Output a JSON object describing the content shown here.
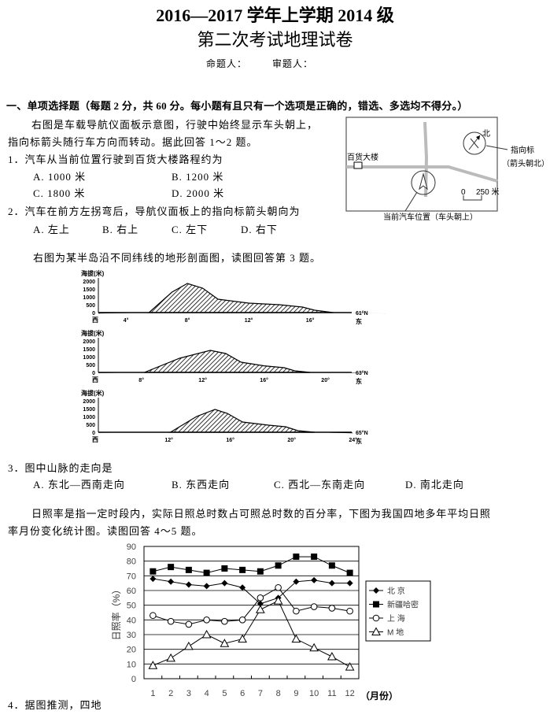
{
  "header": {
    "title_line1": "2016—2017 学年上学期 2014 级",
    "title_line2": "第二次考试地理试卷",
    "setter": "命题人：",
    "reviewer": "审题人："
  },
  "section1": {
    "heading": "一、单项选择题（每题 2 分，共 60 分。每小题有且只有一个选项是正确的，错选、多选均不得分。）"
  },
  "intro1": {
    "line1": "右图是车载导航仪面板示意图，行驶中始终显示车头朝上，",
    "line2": "指向标箭头随行车方向而转动。据此回答 1～2 题。"
  },
  "q1": {
    "stem": "1．汽车从当前位置行驶到百货大楼路程约为",
    "options": [
      "A. 1000 米",
      "B. 1200 米",
      "C. 1800 米",
      "D. 2000 米"
    ]
  },
  "q2": {
    "stem": "2．汽车在前方左拐弯后，导航仪面板上的指向标箭头朝向为",
    "options": [
      "A. 左上",
      "B. 右上",
      "C. 左下",
      "D. 右下"
    ]
  },
  "nav_map": {
    "building": "百货大楼",
    "north": "北",
    "pointer": "指向标",
    "pointer_note": "（箭头朝北）",
    "scale_zero": "0",
    "scale_value": "250 米",
    "car_caption": "当前汽车位置（车头朝上）"
  },
  "intro3": "右图为某半岛沿不同纬线的地形剖面图，读图回答第 3 题。",
  "profiles": [
    {
      "ylabel": "海拔(米)",
      "yticks": [
        "2000",
        "1500",
        "1000",
        "500",
        "0"
      ],
      "west": "西",
      "east": "东",
      "latitude": "61°N",
      "xticks": [
        "4°",
        "8°",
        "12°",
        "16°"
      ],
      "xtick_values": [
        4,
        8,
        12,
        16
      ],
      "range": [
        2.2,
        25.6
      ],
      "points": [
        [
          2.2,
          -120
        ],
        [
          4,
          -60
        ],
        [
          5.5,
          0
        ],
        [
          7,
          1300
        ],
        [
          8,
          1850
        ],
        [
          9,
          1550
        ],
        [
          10,
          850
        ],
        [
          12,
          600
        ],
        [
          14,
          500
        ],
        [
          15.5,
          350
        ],
        [
          16.3,
          150
        ],
        [
          17.5,
          0
        ],
        [
          19.5,
          -40
        ],
        [
          21,
          -120
        ]
      ]
    },
    {
      "ylabel": "海拔(米)",
      "yticks": [
        "2000",
        "1500",
        "1000",
        "500",
        "0"
      ],
      "west": "西",
      "east": "东",
      "latitude": "63°N",
      "xticks": [
        "8°",
        "12°",
        "16°",
        "20°"
      ],
      "xtick_values": [
        8,
        12,
        16,
        20
      ],
      "range": [
        5.2,
        24.8
      ],
      "points": [
        [
          5.2,
          -80
        ],
        [
          7,
          -40
        ],
        [
          8.2,
          0
        ],
        [
          10.5,
          900
        ],
        [
          12.5,
          1400
        ],
        [
          13.5,
          1200
        ],
        [
          14.5,
          650
        ],
        [
          16,
          420
        ],
        [
          17.3,
          300
        ],
        [
          18,
          100
        ],
        [
          19,
          0
        ],
        [
          21,
          -40
        ],
        [
          23,
          -80
        ]
      ]
    },
    {
      "ylabel": "海拔(米)",
      "yticks": [
        "2000",
        "1500",
        "1000",
        "500",
        "0"
      ],
      "west": "西",
      "east": "东",
      "latitude": "65°N",
      "xticks": [
        "12°",
        "16°",
        "20°",
        "24°"
      ],
      "xtick_values": [
        12,
        16,
        20,
        24
      ],
      "range": [
        7.4,
        24.1
      ],
      "points": [
        [
          7.4,
          -60
        ],
        [
          10,
          -30
        ],
        [
          12.1,
          0
        ],
        [
          13.8,
          1000
        ],
        [
          15,
          1450
        ],
        [
          15.8,
          1200
        ],
        [
          16.8,
          650
        ],
        [
          18.5,
          450
        ],
        [
          19.6,
          350
        ],
        [
          20.4,
          100
        ],
        [
          21.5,
          0
        ],
        [
          22.5,
          -60
        ],
        [
          24,
          -120
        ]
      ]
    }
  ],
  "q3": {
    "stem": "3．图中山脉的走向是",
    "options": [
      "A. 东北—西南走向",
      "B. 东西走向",
      "C. 西北—东南走向",
      "D. 南北走向"
    ]
  },
  "intro45": {
    "line1": "日照率是指一定时段内，实际日照总时数占可照总时数的百分率，下图为我国四地多年平均日照",
    "line2": "率月份变化统计图。读图回答 4～5 题。"
  },
  "chart_data": {
    "type": "line",
    "categories": [
      1,
      2,
      3,
      4,
      5,
      6,
      7,
      8,
      9,
      10,
      11,
      12
    ],
    "xlabel": "（月份）",
    "ylabel": "日照率（%）",
    "ylim": [
      0,
      90
    ],
    "yticks": [
      0,
      10,
      20,
      30,
      40,
      50,
      60,
      70,
      80,
      90
    ],
    "grid": "horizontal",
    "legend": "right",
    "series": [
      {
        "name": "北 京",
        "marker": "diamond",
        "values": [
          68,
          66,
          64,
          63,
          65,
          62,
          51,
          55,
          66,
          67,
          65,
          65
        ]
      },
      {
        "name": "新疆哈密",
        "marker": "square",
        "values": [
          73,
          76,
          74,
          72,
          75,
          74,
          73,
          77,
          83,
          83,
          77,
          72
        ]
      },
      {
        "name": "上 海",
        "marker": "circle",
        "values": [
          43,
          39,
          37,
          40,
          39,
          40,
          55,
          62,
          46,
          49,
          48,
          46
        ]
      },
      {
        "name": "M 地",
        "marker": "triangle",
        "values": [
          9,
          14,
          22,
          30,
          24,
          27,
          47,
          53,
          27,
          21,
          15,
          8
        ]
      }
    ]
  },
  "q4": {
    "stem": "4．据图推测，四地"
  }
}
